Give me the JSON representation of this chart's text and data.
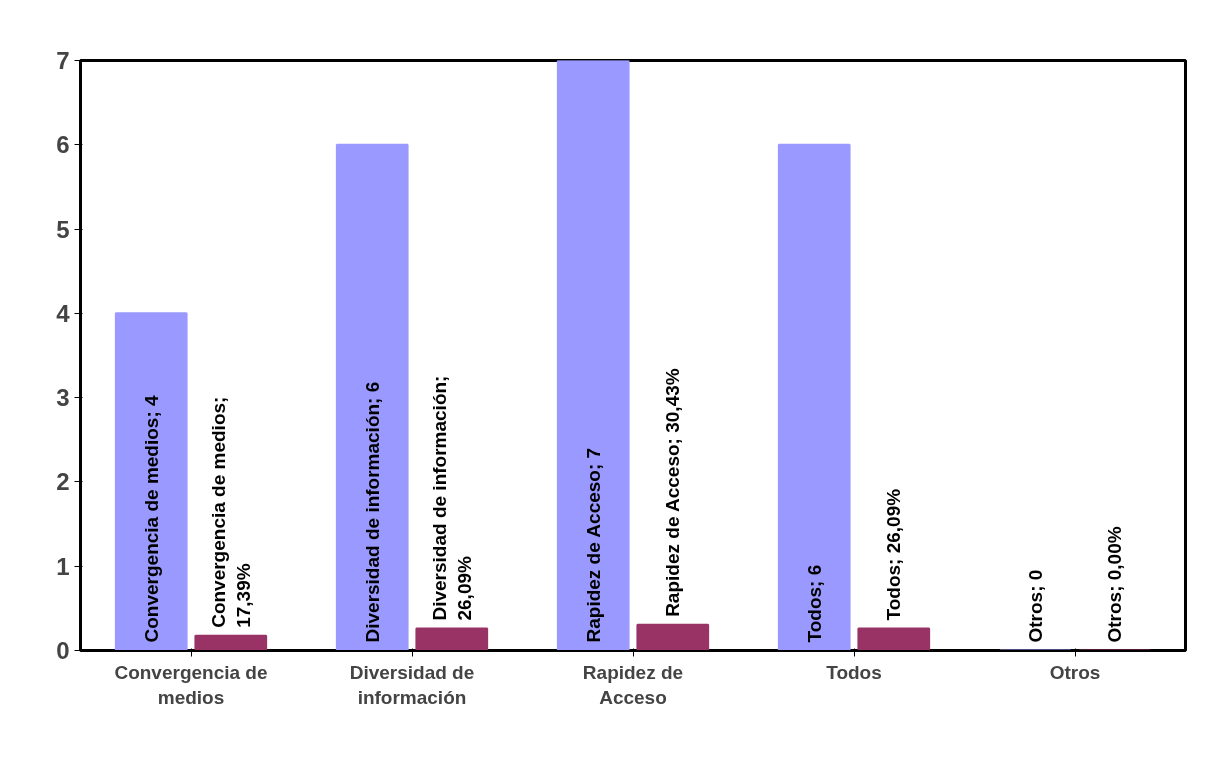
{
  "chart_data": {
    "type": "bar",
    "categories": [
      "Convergencia de medios",
      "Diversidad de información",
      "Rapidez de Acceso",
      "Todos",
      "Otros"
    ],
    "series": [
      {
        "color": "#9999ff",
        "values": [
          4,
          6,
          7,
          6,
          0
        ],
        "value_labels": [
          "Convergencia de medios; 4",
          "Diversidad de información; 6",
          "Rapidez de Acceso; 7",
          "Todos; 6",
          "Otros; 0"
        ]
      },
      {
        "color": "#993366",
        "values": [
          0.1739,
          0.2609,
          0.3043,
          0.2609,
          0
        ],
        "value_labels": [
          "Convergencia de medios; 17,39%",
          "Diversidad de información; 26,09%",
          "Rapidez de Acceso; 30,43%",
          "Todos; 26,09%",
          "Otros; 0,00%"
        ]
      }
    ],
    "ylim": [
      0,
      7
    ],
    "yticks": [
      0,
      1,
      2,
      3,
      4,
      5,
      6,
      7
    ],
    "grid": false
  }
}
